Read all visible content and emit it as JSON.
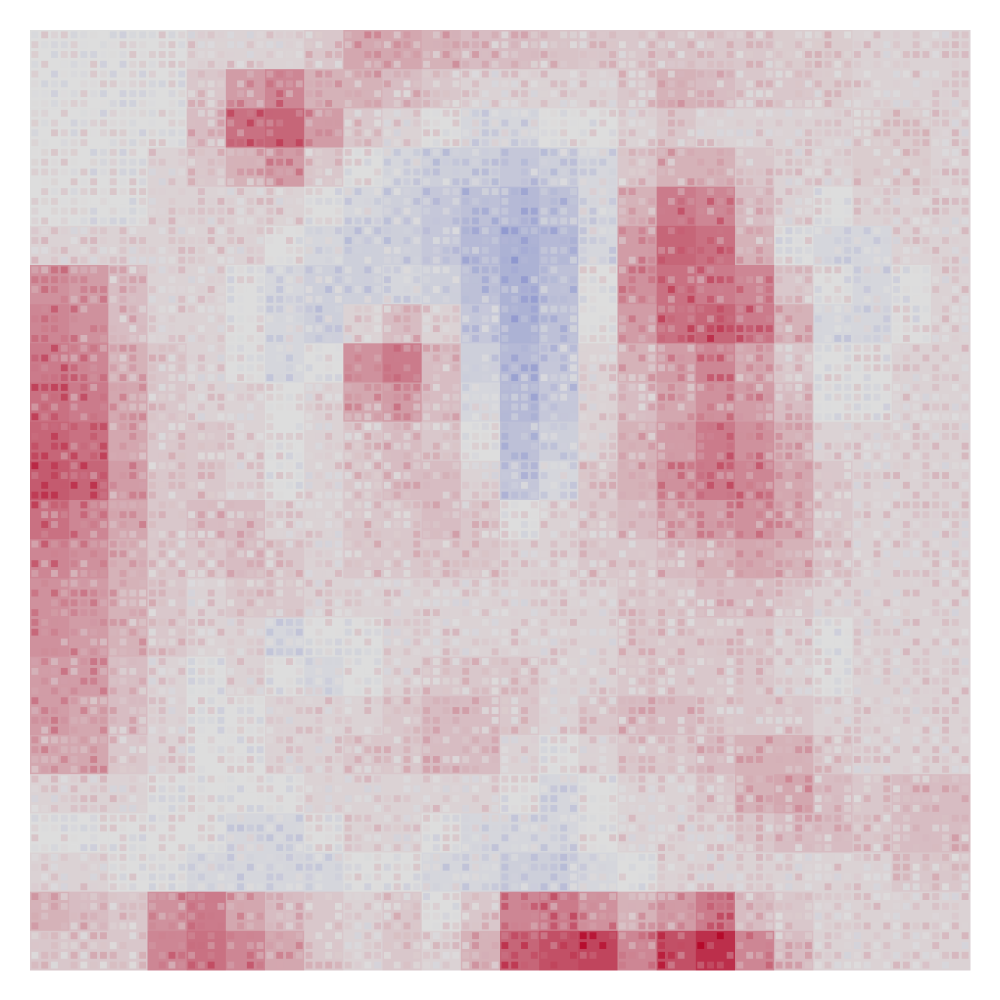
{
  "chart_data": {
    "type": "heatmap",
    "title": "",
    "xlabel": "",
    "ylabel": "",
    "axes_visible": false,
    "colorbar_visible": false,
    "colormap": "coolwarm",
    "value_range": [
      -1,
      1
    ],
    "colors": {
      "negative": "#3b4cc0",
      "neutral": "#dddddd",
      "positive": "#b40426",
      "background": "#ffffff"
    },
    "grid_size": [
      24,
      24
    ],
    "values": [
      [
        0.0,
        0.0,
        0.0,
        0.0,
        0.05,
        0.05,
        0.05,
        0.1,
        0.25,
        0.25,
        0.2,
        0.15,
        0.15,
        0.12,
        0.1,
        0.1,
        0.12,
        0.1,
        0.1,
        0.08,
        0.08,
        0.05,
        0.05,
        0.05
      ],
      [
        0.0,
        0.0,
        0.0,
        0.0,
        0.1,
        0.3,
        0.4,
        0.2,
        0.2,
        0.15,
        0.1,
        0.05,
        0.05,
        0.05,
        0.05,
        0.1,
        0.2,
        0.15,
        0.1,
        0.1,
        0.08,
        0.05,
        0.05,
        0.05
      ],
      [
        0.0,
        0.0,
        0.0,
        0.0,
        0.15,
        0.5,
        0.55,
        0.3,
        0.1,
        0.05,
        0.0,
        -0.05,
        -0.05,
        0.0,
        0.0,
        0.05,
        0.1,
        0.05,
        0.05,
        0.05,
        0.05,
        0.08,
        0.08,
        0.05
      ],
      [
        0.0,
        0.0,
        0.0,
        0.05,
        0.1,
        0.2,
        0.3,
        0.1,
        0.0,
        -0.05,
        -0.1,
        -0.1,
        -0.15,
        -0.1,
        -0.05,
        0.1,
        0.2,
        0.2,
        0.1,
        0.05,
        0.05,
        0.08,
        0.08,
        0.05
      ],
      [
        0.0,
        0.0,
        0.0,
        0.05,
        0.05,
        0.05,
        0.05,
        0.0,
        -0.05,
        -0.1,
        -0.15,
        -0.2,
        -0.25,
        -0.2,
        -0.05,
        0.2,
        0.45,
        0.4,
        0.15,
        0.05,
        0.0,
        0.05,
        0.05,
        0.05
      ],
      [
        0.05,
        0.05,
        0.05,
        0.05,
        0.05,
        0.05,
        0.0,
        -0.05,
        -0.1,
        -0.1,
        -0.15,
        -0.25,
        -0.3,
        -0.25,
        -0.05,
        0.3,
        0.55,
        0.5,
        0.2,
        0.0,
        -0.05,
        -0.05,
        0.05,
        0.05
      ],
      [
        0.35,
        0.3,
        0.15,
        0.05,
        0.05,
        0.0,
        -0.05,
        -0.1,
        -0.1,
        -0.05,
        -0.1,
        -0.2,
        -0.3,
        -0.2,
        0.0,
        0.35,
        0.5,
        0.45,
        0.4,
        0.1,
        0.0,
        -0.05,
        0.0,
        0.05
      ],
      [
        0.4,
        0.35,
        0.15,
        0.05,
        0.05,
        0.0,
        -0.05,
        -0.1,
        0.05,
        0.15,
        0.05,
        -0.15,
        -0.3,
        -0.2,
        0.0,
        0.3,
        0.5,
        0.55,
        0.45,
        0.2,
        -0.05,
        -0.05,
        0.0,
        0.05
      ],
      [
        0.45,
        0.4,
        0.2,
        0.1,
        0.05,
        0.0,
        -0.05,
        0.0,
        0.35,
        0.45,
        0.15,
        -0.1,
        -0.25,
        -0.15,
        0.05,
        0.2,
        0.3,
        0.4,
        0.25,
        0.1,
        0.0,
        0.0,
        0.05,
        0.05
      ],
      [
        0.5,
        0.45,
        0.25,
        0.1,
        0.05,
        0.05,
        0.0,
        0.05,
        0.25,
        0.3,
        0.15,
        -0.05,
        -0.25,
        -0.15,
        0.05,
        0.15,
        0.25,
        0.35,
        0.3,
        0.15,
        0.0,
        0.0,
        0.05,
        0.05
      ],
      [
        0.55,
        0.5,
        0.25,
        0.1,
        0.1,
        0.05,
        0.0,
        0.05,
        0.1,
        0.15,
        0.1,
        0.0,
        -0.2,
        -0.1,
        0.05,
        0.2,
        0.3,
        0.45,
        0.35,
        0.2,
        0.05,
        0.05,
        0.05,
        0.05
      ],
      [
        0.6,
        0.55,
        0.3,
        0.1,
        0.1,
        0.05,
        0.0,
        0.05,
        0.1,
        0.15,
        0.15,
        0.05,
        -0.15,
        -0.05,
        0.1,
        0.2,
        0.35,
        0.45,
        0.4,
        0.25,
        0.1,
        0.05,
        0.05,
        0.05
      ],
      [
        0.5,
        0.4,
        0.25,
        0.1,
        0.15,
        0.15,
        0.05,
        0.05,
        0.1,
        0.1,
        0.15,
        0.1,
        0.0,
        0.05,
        0.1,
        0.15,
        0.25,
        0.3,
        0.35,
        0.25,
        0.1,
        0.05,
        0.05,
        0.05
      ],
      [
        0.4,
        0.35,
        0.2,
        0.1,
        0.1,
        0.15,
        0.1,
        0.05,
        0.1,
        0.1,
        0.1,
        0.1,
        0.05,
        0.05,
        0.1,
        0.1,
        0.15,
        0.2,
        0.25,
        0.2,
        0.1,
        0.05,
        0.05,
        0.05
      ],
      [
        0.35,
        0.3,
        0.2,
        0.1,
        0.05,
        0.1,
        0.1,
        0.05,
        0.05,
        0.05,
        0.05,
        0.05,
        0.05,
        0.05,
        0.05,
        0.1,
        0.1,
        0.15,
        0.15,
        0.1,
        0.05,
        0.05,
        0.05,
        0.05
      ],
      [
        0.35,
        0.3,
        0.2,
        0.1,
        0.05,
        0.05,
        -0.05,
        0.0,
        0.0,
        0.05,
        0.05,
        0.05,
        0.05,
        0.05,
        0.05,
        0.1,
        0.1,
        0.1,
        0.1,
        0.05,
        0.0,
        0.05,
        0.05,
        0.05
      ],
      [
        0.3,
        0.3,
        0.15,
        0.05,
        0.0,
        0.05,
        0.0,
        -0.05,
        0.0,
        0.05,
        0.1,
        0.1,
        0.1,
        0.05,
        0.05,
        0.1,
        0.1,
        0.1,
        0.1,
        0.05,
        0.0,
        0.05,
        0.05,
        0.05
      ],
      [
        0.3,
        0.25,
        0.15,
        0.05,
        0.0,
        0.0,
        0.05,
        0.05,
        0.05,
        0.1,
        0.15,
        0.15,
        0.1,
        0.05,
        0.1,
        0.15,
        0.15,
        0.1,
        0.1,
        0.1,
        0.05,
        0.05,
        0.05,
        0.05
      ],
      [
        0.25,
        0.25,
        0.1,
        0.05,
        0.0,
        0.0,
        0.05,
        0.05,
        0.1,
        0.1,
        0.15,
        0.15,
        0.05,
        0.0,
        0.05,
        0.1,
        0.1,
        0.15,
        0.2,
        0.2,
        0.1,
        0.05,
        0.05,
        0.05
      ],
      [
        0.05,
        0.05,
        0.05,
        0.0,
        0.0,
        0.0,
        0.0,
        0.05,
        0.05,
        0.05,
        0.05,
        0.05,
        0.0,
        -0.05,
        0.0,
        0.05,
        0.05,
        0.1,
        0.2,
        0.25,
        0.15,
        0.1,
        0.15,
        0.15
      ],
      [
        0.0,
        0.0,
        0.0,
        0.0,
        0.0,
        -0.05,
        -0.05,
        0.0,
        0.05,
        0.05,
        0.0,
        -0.05,
        -0.05,
        -0.05,
        0.0,
        0.05,
        0.05,
        0.05,
        0.1,
        0.15,
        0.15,
        0.1,
        0.15,
        0.15
      ],
      [
        0.05,
        0.05,
        0.0,
        0.0,
        -0.05,
        -0.05,
        -0.05,
        -0.05,
        0.0,
        0.0,
        -0.05,
        -0.05,
        -0.1,
        -0.1,
        -0.05,
        0.0,
        0.05,
        0.05,
        0.05,
        0.05,
        0.05,
        0.05,
        0.1,
        0.1
      ],
      [
        0.2,
        0.15,
        0.1,
        0.35,
        0.45,
        0.25,
        0.15,
        0.1,
        0.05,
        0.1,
        0.0,
        0.1,
        0.4,
        0.45,
        0.35,
        0.2,
        0.3,
        0.45,
        0.15,
        0.1,
        0.05,
        0.05,
        0.05,
        0.05
      ],
      [
        0.1,
        0.1,
        0.1,
        0.4,
        0.5,
        0.4,
        0.25,
        0.1,
        0.05,
        0.1,
        0.05,
        0.2,
        0.55,
        0.65,
        0.7,
        0.4,
        0.65,
        0.8,
        0.4,
        0.15,
        0.05,
        0.05,
        0.05,
        0.05
      ]
    ]
  }
}
